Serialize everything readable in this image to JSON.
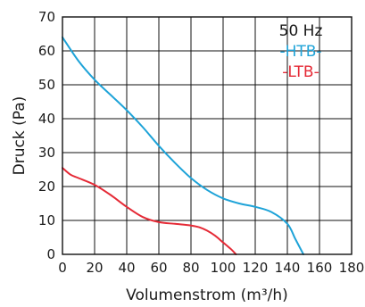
{
  "chart_data": {
    "type": "line",
    "title": "",
    "xlabel": "Volumenstrom (m³/h)",
    "ylabel": "Druck (Pa)",
    "xlim": [
      0,
      180
    ],
    "ylim": [
      0,
      70
    ],
    "x_ticks": [
      "0",
      "20",
      "40",
      "60",
      "80",
      "100",
      "120",
      "140",
      "160",
      "180"
    ],
    "y_ticks": [
      "0",
      "10",
      "20",
      "30",
      "40",
      "50",
      "60",
      "70"
    ],
    "grid": true,
    "legend": {
      "placement": "top-right",
      "header": "50 Hz",
      "entries": [
        "-HTB-",
        "-LTB-"
      ]
    },
    "series": [
      {
        "name": "-HTB-",
        "color": "#1ea3d8",
        "x": [
          0,
          10,
          20,
          30,
          40,
          50,
          60,
          70,
          80,
          90,
          100,
          110,
          120,
          130,
          140,
          145,
          150
        ],
        "y": [
          64,
          57,
          51.5,
          47,
          42.5,
          37.5,
          32,
          27,
          22.5,
          19,
          16.5,
          15,
          14,
          12.5,
          9,
          4.5,
          0
        ]
      },
      {
        "name": "-LTB-",
        "color": "#e52a36",
        "x": [
          0,
          5,
          10,
          20,
          30,
          40,
          50,
          60,
          70,
          80,
          85,
          90,
          95,
          100,
          105,
          108
        ],
        "y": [
          25.5,
          23.5,
          22.5,
          20.5,
          17.5,
          14,
          11,
          9.5,
          9,
          8.5,
          8,
          7,
          5.5,
          3.5,
          1.5,
          0
        ]
      }
    ]
  }
}
